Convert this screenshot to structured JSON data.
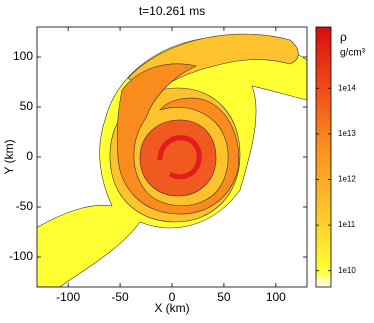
{
  "chart_data": {
    "type": "contour",
    "title": "t=10.261 ms",
    "x_label": "X (km)",
    "y_label": "Y (km)",
    "xlim": [
      -130,
      130
    ],
    "ylim": [
      -130,
      130
    ],
    "xticks": [
      -100,
      -50,
      0,
      50,
      100
    ],
    "yticks": [
      -100,
      -50,
      0,
      50,
      100
    ],
    "colorbar": {
      "label": "ρ",
      "units": "g/cm³",
      "scale": "log",
      "clim": [
        4400000000.0,
        2200000000000000.0
      ],
      "ticks": [
        {
          "value": 10000000000.0,
          "label": "1e10"
        },
        {
          "value": 100000000000.0,
          "label": "1e11"
        },
        {
          "value": 1000000000000.0,
          "label": "1e12"
        },
        {
          "value": 10000000000000.0,
          "label": "1e13"
        },
        {
          "value": 100000000000000.0,
          "label": "1e14"
        }
      ]
    }
  }
}
